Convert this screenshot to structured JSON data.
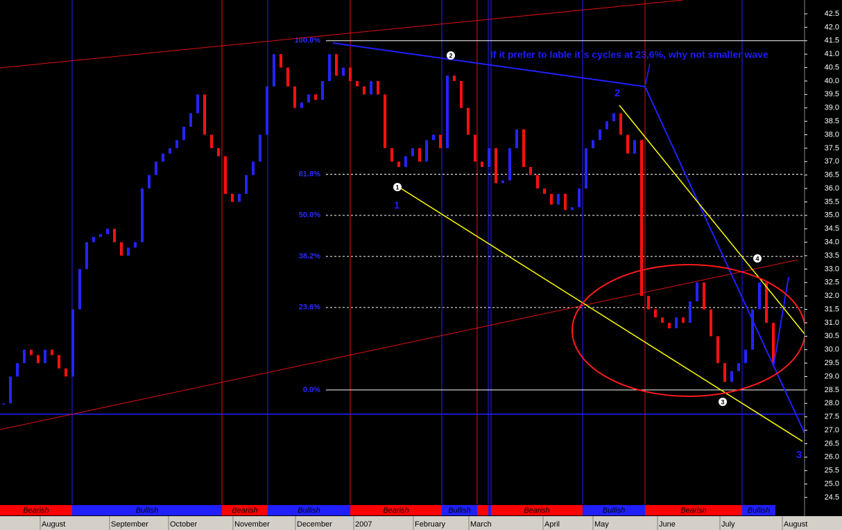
{
  "chart_data": {
    "type": "bar",
    "up_color": "#2424ff",
    "down_color": "#ff1010",
    "values": [
      28.0,
      29.0,
      29.5,
      30.0,
      29.8,
      29.5,
      30.0,
      29.8,
      29.3,
      29.0,
      31.5,
      33.0,
      34.0,
      34.2,
      34.3,
      34.5,
      34.0,
      33.5,
      33.8,
      34.0,
      36.0,
      36.5,
      37.0,
      37.3,
      37.5,
      37.8,
      38.3,
      38.8,
      39.5,
      38.0,
      37.5,
      37.2,
      35.8,
      35.5,
      35.8,
      36.5,
      37.0,
      38.0,
      39.8,
      41.0,
      40.5,
      39.8,
      39.0,
      39.2,
      39.5,
      39.3,
      40.0,
      41.0,
      40.2,
      40.5,
      40.0,
      39.8,
      39.5,
      40.0,
      39.5,
      37.5,
      37.0,
      36.8,
      37.2,
      37.5,
      37.0,
      37.8,
      38.0,
      37.5,
      40.2,
      40.0,
      39.0,
      38.0,
      37.0,
      36.8,
      37.5,
      36.2,
      36.3,
      37.5,
      38.2,
      36.8,
      36.5,
      36.0,
      35.8,
      35.4,
      35.8,
      35.2,
      35.3,
      36.0,
      37.5,
      37.8,
      38.2,
      38.5,
      38.8,
      38.0,
      37.3,
      37.8,
      32.0,
      31.5,
      31.2,
      31.0,
      30.8,
      31.2,
      31.0,
      31.8,
      32.5,
      31.5,
      30.5,
      29.5,
      28.8,
      29.2,
      29.5,
      30.0,
      31.5,
      32.5,
      31.0,
      29.5
    ],
    "ylim": [
      24.5,
      42.5
    ],
    "yticks": [
      42.5,
      {
        "value": 42,
        "label": "42.0"
      },
      41.5,
      {
        "value": 41,
        "label": "41.0"
      },
      40.5,
      {
        "value": 40,
        "label": "40.0"
      },
      39.5,
      {
        "value": 39,
        "label": "39.0"
      },
      38.5,
      {
        "value": 38,
        "label": "38.0"
      },
      37.5,
      {
        "value": 37,
        "label": "37.0"
      },
      36.5,
      {
        "value": 36,
        "label": "36.0"
      },
      35.5,
      {
        "value": 35,
        "label": "35.0"
      },
      34.5,
      {
        "value": 34,
        "label": "34.0"
      },
      33.5,
      {
        "value": 33,
        "label": "33.0"
      },
      32.5,
      {
        "value": 32,
        "label": "32.0"
      },
      31.5,
      {
        "value": 31,
        "label": "31.0"
      },
      30.5,
      {
        "value": 30,
        "label": "30.0"
      },
      29.5,
      {
        "value": 29,
        "label": "29.0"
      },
      28.5,
      {
        "value": 28,
        "label": "28.0"
      },
      27.5,
      {
        "value": 27,
        "label": "27.0"
      },
      26.5,
      {
        "value": 26,
        "label": "26.0"
      },
      25.5,
      {
        "value": 25,
        "label": "25.0"
      },
      24.5
    ],
    "fib_levels": [
      {
        "label": "100.0%",
        "value": 41.5
      },
      {
        "label": "61.8%",
        "value": 36.53
      },
      {
        "label": "50.0%",
        "value": 35.0
      },
      {
        "label": "38.2%",
        "value": 33.47
      },
      {
        "label": "23.6%",
        "value": 31.57
      },
      {
        "label": "0.0%",
        "value": 28.5
      }
    ],
    "support_line": 27.6,
    "months": [
      "August",
      "September",
      "October",
      "November",
      "December",
      "2007",
      "February",
      "March",
      "April",
      "May",
      "June",
      "July",
      "August"
    ],
    "regimes": [
      {
        "label": "Bearish",
        "color": "#ff0000"
      },
      {
        "label": "Bullish",
        "color": "#2020ff"
      },
      {
        "label": "Bearish",
        "color": "#ff0000"
      },
      {
        "label": "Bullish",
        "color": "#2020ff"
      },
      {
        "label": "Bearish",
        "color": "#ff0000"
      },
      {
        "label": "Bullish",
        "color": "#2020ff"
      },
      {
        "color": "#ff0000"
      },
      {
        "color": "#2020ff"
      },
      {
        "label": "Bearish",
        "color": "#ff0000"
      },
      {
        "label": "Bullish",
        "color": "#2020ff"
      },
      {
        "label": "Bearish",
        "color": "#ff0000"
      },
      {
        "label": "Bullish",
        "color": "#2020ff"
      }
    ],
    "annotation": "If it prefer to lable it`s cycles at 23,6%, why not smaller wave",
    "wave_labels": [
      "1",
      "2",
      "3"
    ],
    "markers": [
      "1",
      "2",
      "3",
      "4"
    ]
  }
}
